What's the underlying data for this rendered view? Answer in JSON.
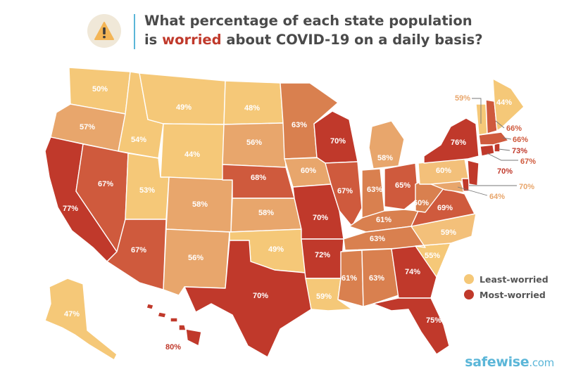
{
  "title": {
    "line1": "What percentage of each state population",
    "line2_prefix": "is ",
    "line2_highlight": "worried",
    "line2_suffix": " about COVID-19 on a daily basis?"
  },
  "icon": "warning-icon",
  "colors": {
    "least": "#f5c878",
    "low": "#f3c07a",
    "mid": "#e8a66c",
    "midhigh": "#d9804f",
    "high": "#cf5a3d",
    "most": "#c0392b",
    "text_dark": "#4a4a4a",
    "accent_blue": "#5bb6d8"
  },
  "legend": {
    "least": "Least-worried",
    "most": "Most-worried"
  },
  "brand": {
    "name": "safewise",
    "tld": ".com"
  },
  "states": {
    "WA": "50%",
    "OR": "57%",
    "CA": "77%",
    "NV": "67%",
    "ID": "54%",
    "MT": "49%",
    "WY": "44%",
    "UT": "53%",
    "AZ": "67%",
    "CO": "58%",
    "NM": "56%",
    "ND": "48%",
    "SD": "56%",
    "NE": "68%",
    "KS": "58%",
    "OK": "49%",
    "TX": "70%",
    "MN": "63%",
    "IA": "60%",
    "MO": "70%",
    "AR": "72%",
    "LA": "59%",
    "WI": "70%",
    "IL": "67%",
    "MI": "58%",
    "IN": "63%",
    "OH": "65%",
    "KY": "61%",
    "TN": "63%",
    "MS": "61%",
    "AL": "63%",
    "GA": "74%",
    "FL": "75%",
    "SC": "55%",
    "NC": "59%",
    "VA": "69%",
    "WV": "60%",
    "PA": "60%",
    "NY": "76%",
    "ME": "44%",
    "NH": "66%",
    "VT": "59%",
    "MA": "66%",
    "RI": "73%",
    "CT": "67%",
    "NJ": "70%",
    "DE": "70%",
    "MD": "64%",
    "AK": "47%",
    "HI": "80%"
  }
}
